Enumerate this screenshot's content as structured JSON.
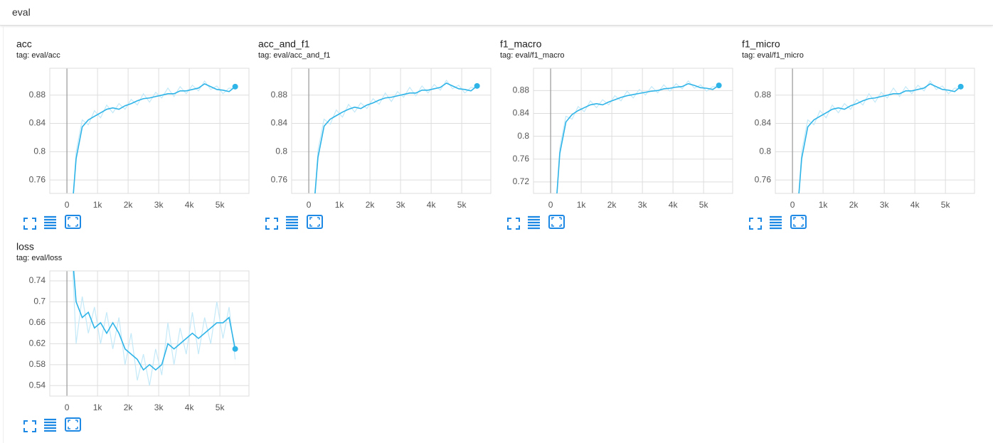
{
  "header": {
    "title": "eval"
  },
  "chart_data": [
    {
      "type": "line",
      "title": "acc",
      "subtitle": "tag: eval/acc",
      "x": [
        100,
        300,
        500,
        700,
        900,
        1100,
        1300,
        1500,
        1700,
        1900,
        2100,
        2300,
        2500,
        2700,
        2900,
        3100,
        3300,
        3500,
        3700,
        3900,
        4100,
        4300,
        4500,
        4700,
        4900,
        5100,
        5300,
        5500
      ],
      "series": [
        {
          "color": "#c4e9f8",
          "values": [
            0.66,
            0.8,
            0.845,
            0.838,
            0.858,
            0.848,
            0.866,
            0.855,
            0.868,
            0.86,
            0.874,
            0.866,
            0.882,
            0.87,
            0.884,
            0.876,
            0.89,
            0.878,
            0.892,
            0.882,
            0.894,
            0.886,
            0.9,
            0.888,
            0.893,
            0.882,
            0.89,
            0.889
          ]
        },
        {
          "color": "#2fb4e8",
          "values": [
            0.68,
            0.79,
            0.835,
            0.845,
            0.85,
            0.855,
            0.86,
            0.862,
            0.86,
            0.865,
            0.868,
            0.872,
            0.875,
            0.876,
            0.878,
            0.88,
            0.882,
            0.882,
            0.886,
            0.886,
            0.888,
            0.89,
            0.896,
            0.892,
            0.888,
            0.887,
            0.885,
            0.892
          ]
        }
      ],
      "xlim": [
        -560,
        5950
      ],
      "xticks": [
        0,
        {
          "value": 1000,
          "label": "1k"
        },
        {
          "value": 2000,
          "label": "2k"
        },
        {
          "value": 3000,
          "label": "3k"
        },
        {
          "value": 4000,
          "label": "4k"
        },
        {
          "value": 5000,
          "label": "5k"
        }
      ],
      "ylim": [
        0.741,
        0.918
      ],
      "yticks": [
        0.76,
        0.8,
        0.84,
        0.88
      ],
      "grid": true
    },
    {
      "type": "line",
      "title": "acc_and_f1",
      "subtitle": "tag: eval/acc_and_f1",
      "x": [
        100,
        300,
        500,
        700,
        900,
        1100,
        1300,
        1500,
        1700,
        1900,
        2100,
        2300,
        2500,
        2700,
        2900,
        3100,
        3300,
        3500,
        3700,
        3900,
        4100,
        4300,
        4500,
        4700,
        4900,
        5100,
        5300,
        5500
      ],
      "series": [
        {
          "color": "#c4e9f8",
          "values": [
            0.665,
            0.802,
            0.846,
            0.839,
            0.859,
            0.849,
            0.867,
            0.856,
            0.869,
            0.861,
            0.875,
            0.867,
            0.883,
            0.871,
            0.885,
            0.877,
            0.891,
            0.879,
            0.893,
            0.883,
            0.895,
            0.887,
            0.901,
            0.889,
            0.894,
            0.883,
            0.891,
            0.89
          ]
        },
        {
          "color": "#2fb4e8",
          "values": [
            0.685,
            0.792,
            0.836,
            0.846,
            0.851,
            0.856,
            0.86,
            0.863,
            0.861,
            0.866,
            0.869,
            0.873,
            0.876,
            0.877,
            0.879,
            0.881,
            0.883,
            0.883,
            0.887,
            0.887,
            0.889,
            0.891,
            0.897,
            0.893,
            0.889,
            0.888,
            0.886,
            0.893
          ]
        }
      ],
      "xlim": [
        -560,
        5950
      ],
      "xticks": [
        0,
        {
          "value": 1000,
          "label": "1k"
        },
        {
          "value": 2000,
          "label": "2k"
        },
        {
          "value": 3000,
          "label": "3k"
        },
        {
          "value": 4000,
          "label": "4k"
        },
        {
          "value": 5000,
          "label": "5k"
        }
      ],
      "ylim": [
        0.741,
        0.918
      ],
      "yticks": [
        0.76,
        0.8,
        0.84,
        0.88
      ],
      "grid": true
    },
    {
      "type": "line",
      "title": "f1_macro",
      "subtitle": "tag: eval/f1_macro",
      "x": [
        100,
        300,
        500,
        700,
        900,
        1100,
        1300,
        1500,
        1700,
        1900,
        2100,
        2300,
        2500,
        2700,
        2900,
        3100,
        3300,
        3500,
        3700,
        3900,
        4100,
        4300,
        4500,
        4700,
        4900,
        5100,
        5300,
        5500
      ],
      "series": [
        {
          "color": "#c4e9f8",
          "values": [
            0.6,
            0.78,
            0.835,
            0.83,
            0.852,
            0.843,
            0.862,
            0.85,
            0.864,
            0.855,
            0.871,
            0.862,
            0.879,
            0.867,
            0.882,
            0.872,
            0.887,
            0.876,
            0.89,
            0.879,
            0.892,
            0.883,
            0.897,
            0.884,
            0.89,
            0.879,
            0.887,
            0.886
          ]
        },
        {
          "color": "#2fb4e8",
          "values": [
            0.62,
            0.77,
            0.825,
            0.838,
            0.845,
            0.85,
            0.855,
            0.857,
            0.855,
            0.86,
            0.864,
            0.868,
            0.871,
            0.873,
            0.875,
            0.877,
            0.879,
            0.88,
            0.883,
            0.884,
            0.886,
            0.887,
            0.892,
            0.889,
            0.885,
            0.884,
            0.882,
            0.889
          ]
        }
      ],
      "xlim": [
        -560,
        5950
      ],
      "xticks": [
        0,
        {
          "value": 1000,
          "label": "1k"
        },
        {
          "value": 2000,
          "label": "2k"
        },
        {
          "value": 3000,
          "label": "3k"
        },
        {
          "value": 4000,
          "label": "4k"
        },
        {
          "value": 5000,
          "label": "5k"
        }
      ],
      "ylim": [
        0.7,
        0.919
      ],
      "yticks": [
        0.72,
        0.76,
        0.8,
        0.84,
        0.88
      ],
      "grid": true
    },
    {
      "type": "line",
      "title": "f1_micro",
      "subtitle": "tag: eval/f1_micro",
      "x": [
        100,
        300,
        500,
        700,
        900,
        1100,
        1300,
        1500,
        1700,
        1900,
        2100,
        2300,
        2500,
        2700,
        2900,
        3100,
        3300,
        3500,
        3700,
        3900,
        4100,
        4300,
        4500,
        4700,
        4900,
        5100,
        5300,
        5500
      ],
      "series": [
        {
          "color": "#c4e9f8",
          "values": [
            0.66,
            0.8,
            0.845,
            0.838,
            0.858,
            0.848,
            0.866,
            0.855,
            0.868,
            0.86,
            0.874,
            0.866,
            0.882,
            0.87,
            0.884,
            0.876,
            0.89,
            0.878,
            0.892,
            0.882,
            0.894,
            0.886,
            0.9,
            0.888,
            0.893,
            0.882,
            0.89,
            0.889
          ]
        },
        {
          "color": "#2fb4e8",
          "values": [
            0.68,
            0.79,
            0.835,
            0.845,
            0.85,
            0.855,
            0.86,
            0.862,
            0.86,
            0.865,
            0.868,
            0.872,
            0.875,
            0.876,
            0.878,
            0.88,
            0.882,
            0.882,
            0.886,
            0.886,
            0.888,
            0.89,
            0.896,
            0.892,
            0.888,
            0.887,
            0.885,
            0.892
          ]
        }
      ],
      "xlim": [
        -560,
        5950
      ],
      "xticks": [
        0,
        {
          "value": 1000,
          "label": "1k"
        },
        {
          "value": 2000,
          "label": "2k"
        },
        {
          "value": 3000,
          "label": "3k"
        },
        {
          "value": 4000,
          "label": "4k"
        },
        {
          "value": 5000,
          "label": "5k"
        }
      ],
      "ylim": [
        0.741,
        0.918
      ],
      "yticks": [
        0.76,
        0.8,
        0.84,
        0.88
      ],
      "grid": true
    },
    {
      "type": "line",
      "title": "loss",
      "subtitle": "tag: eval/loss",
      "x": [
        100,
        300,
        500,
        700,
        900,
        1100,
        1300,
        1500,
        1700,
        1900,
        2100,
        2300,
        2500,
        2700,
        2900,
        3100,
        3300,
        3500,
        3700,
        3900,
        4100,
        4300,
        4500,
        4700,
        4900,
        5100,
        5300,
        5500
      ],
      "series": [
        {
          "color": "#c4e9f8",
          "values": [
            0.88,
            0.62,
            0.71,
            0.64,
            0.69,
            0.62,
            0.68,
            0.61,
            0.67,
            0.58,
            0.64,
            0.55,
            0.6,
            0.54,
            0.61,
            0.56,
            0.66,
            0.58,
            0.65,
            0.6,
            0.68,
            0.6,
            0.67,
            0.62,
            0.7,
            0.63,
            0.69,
            0.59
          ]
        },
        {
          "color": "#2fb4e8",
          "values": [
            0.85,
            0.7,
            0.67,
            0.68,
            0.65,
            0.66,
            0.64,
            0.66,
            0.64,
            0.61,
            0.6,
            0.59,
            0.57,
            0.58,
            0.57,
            0.58,
            0.62,
            0.61,
            0.62,
            0.63,
            0.64,
            0.63,
            0.64,
            0.65,
            0.66,
            0.66,
            0.67,
            0.61
          ]
        }
      ],
      "xlim": [
        -560,
        5950
      ],
      "xticks": [
        0,
        {
          "value": 1000,
          "label": "1k"
        },
        {
          "value": 2000,
          "label": "2k"
        },
        {
          "value": 3000,
          "label": "3k"
        },
        {
          "value": 4000,
          "label": "4k"
        },
        {
          "value": 5000,
          "label": "5k"
        }
      ],
      "ylim": [
        0.52,
        0.759
      ],
      "yticks": [
        0.54,
        0.58,
        0.62,
        0.66,
        0.7,
        0.74
      ],
      "grid": true
    }
  ]
}
